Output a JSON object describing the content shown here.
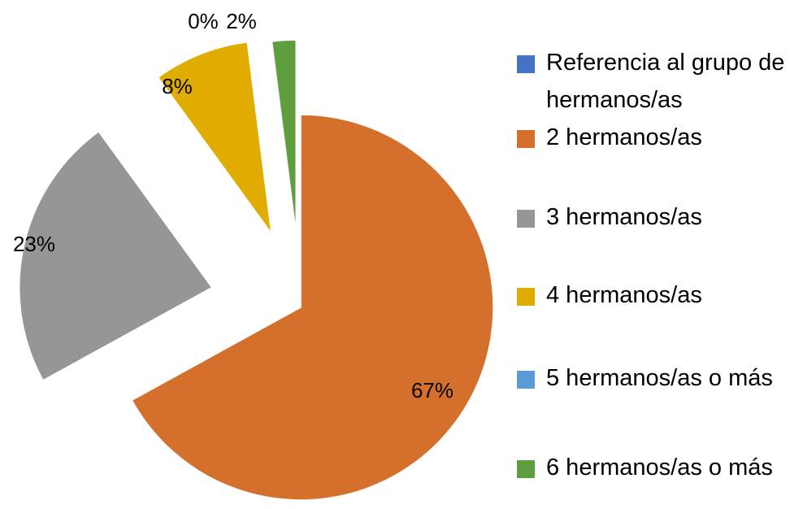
{
  "chart_data": {
    "type": "pie",
    "categories": [
      "Referencia al grupo de hermanos/as",
      "2 hermanos/as",
      "3 hermanos/as",
      "4 hermanos/as",
      "5 hermanos/as o más",
      "6 hermanos/as o más"
    ],
    "values": [
      0,
      67,
      23,
      8,
      0,
      2
    ],
    "value_labels": [
      null,
      "67%",
      "23%",
      "8%",
      "0%",
      "2%"
    ],
    "colors": [
      "#4472c4",
      "#d4702c",
      "#969696",
      "#e0ac00",
      "#5b9bd5",
      "#5f9e3f"
    ],
    "legend": "right"
  }
}
